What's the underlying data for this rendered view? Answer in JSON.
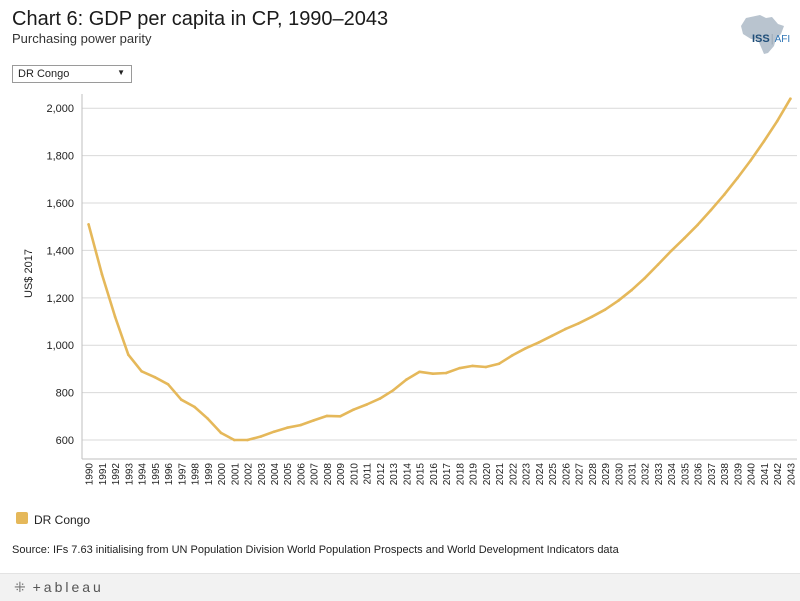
{
  "header": {
    "title": "Chart 6: GDP per capita in CP, 1990–2043",
    "subtitle": "Purchasing power parity"
  },
  "logo": {
    "left": "ISS",
    "right": "AFI"
  },
  "filter": {
    "selected": "DR Congo"
  },
  "chart_data": {
    "type": "line",
    "title": "Chart 6: GDP per capita in CP, 1990–2043",
    "subtitle": "Purchasing power parity",
    "xlabel": "",
    "ylabel": "US$ 2017",
    "ylim": [
      520,
      2060
    ],
    "yticks": [
      600,
      800,
      1000,
      1200,
      1400,
      1600,
      1800,
      2000
    ],
    "ytick_labels": [
      "600",
      "800",
      "1,000",
      "1,200",
      "1,400",
      "1,600",
      "1,800",
      "2,000"
    ],
    "x": [
      1990,
      1991,
      1992,
      1993,
      1994,
      1995,
      1996,
      1997,
      1998,
      1999,
      2000,
      2001,
      2002,
      2003,
      2004,
      2005,
      2006,
      2007,
      2008,
      2009,
      2010,
      2011,
      2012,
      2013,
      2014,
      2015,
      2016,
      2017,
      2018,
      2019,
      2020,
      2021,
      2022,
      2023,
      2024,
      2025,
      2026,
      2027,
      2028,
      2029,
      2030,
      2031,
      2032,
      2033,
      2034,
      2035,
      2036,
      2037,
      2038,
      2039,
      2040,
      2041,
      2042,
      2043
    ],
    "series": [
      {
        "name": "DR Congo",
        "color": "#e5b85a",
        "values": [
          1510,
          1300,
          1120,
          960,
          890,
          865,
          835,
          770,
          740,
          690,
          630,
          600,
          600,
          615,
          635,
          652,
          663,
          683,
          702,
          700,
          728,
          750,
          775,
          810,
          855,
          888,
          880,
          883,
          903,
          913,
          908,
          922,
          957,
          987,
          1012,
          1040,
          1068,
          1092,
          1120,
          1150,
          1188,
          1232,
          1283,
          1340,
          1398,
          1452,
          1508,
          1570,
          1635,
          1705,
          1780,
          1860,
          1945,
          2040
        ]
      }
    ],
    "legend": [
      "DR Congo"
    ],
    "grid": true
  },
  "source": "Source: IFs 7.63 initialising from UN Population Division World Population Prospects and World Development Indicators data",
  "footer": {
    "brand": "+ableau"
  }
}
